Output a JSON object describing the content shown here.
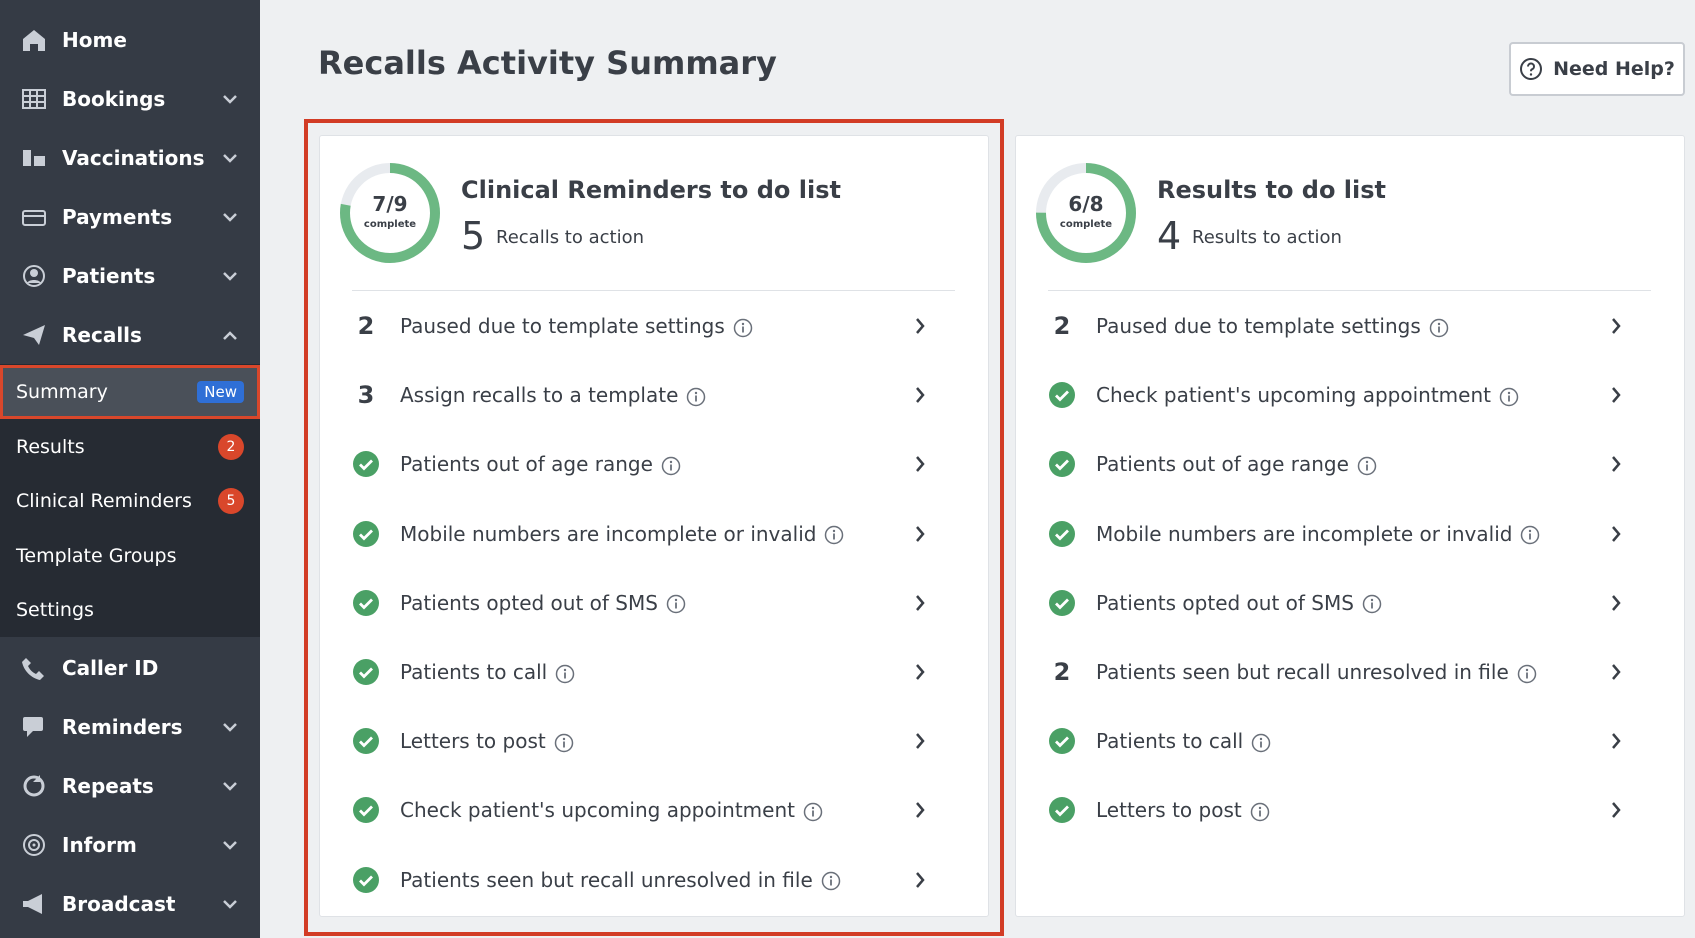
{
  "sidebar": {
    "items": [
      {
        "label": "Home",
        "icon": "home"
      },
      {
        "label": "Bookings",
        "icon": "grid",
        "expandable": true
      },
      {
        "label": "Vaccinations",
        "icon": "vial",
        "expandable": true
      },
      {
        "label": "Payments",
        "icon": "card",
        "expandable": true
      },
      {
        "label": "Patients",
        "icon": "user",
        "expandable": true
      },
      {
        "label": "Recalls",
        "icon": "plane",
        "expandable": true,
        "expanded": true,
        "children": [
          {
            "label": "Summary",
            "badge": "New",
            "active": true
          },
          {
            "label": "Results",
            "badge": "2"
          },
          {
            "label": "Clinical Reminders",
            "badge": "5"
          },
          {
            "label": "Template Groups"
          },
          {
            "label": "Settings"
          }
        ]
      },
      {
        "label": "Caller ID",
        "icon": "phone"
      },
      {
        "label": "Reminders",
        "icon": "chat",
        "expandable": true
      },
      {
        "label": "Repeats",
        "icon": "repeat",
        "expandable": true
      },
      {
        "label": "Inform",
        "icon": "target",
        "expandable": true
      },
      {
        "label": "Broadcast",
        "icon": "megaphone",
        "expandable": true
      }
    ]
  },
  "header": {
    "title": "Recalls Activity Summary",
    "help": "Need Help?"
  },
  "cards": [
    {
      "title": "Clinical Reminders to do list",
      "progress": "7/9",
      "progress_label": "complete",
      "count": "5",
      "subtitle": "Recalls to action",
      "highlighted": true,
      "items": [
        {
          "count": "2",
          "label": "Paused due to template settings"
        },
        {
          "count": "3",
          "label": "Assign recalls to a template"
        },
        {
          "count": null,
          "label": "Patients out of age range"
        },
        {
          "count": null,
          "label": "Mobile numbers are incomplete or invalid"
        },
        {
          "count": null,
          "label": "Patients opted out of SMS"
        },
        {
          "count": null,
          "label": "Patients to call"
        },
        {
          "count": null,
          "label": "Letters to post"
        },
        {
          "count": null,
          "label": "Check patient's upcoming appointment"
        },
        {
          "count": null,
          "label": "Patients seen but recall unresolved in file"
        }
      ]
    },
    {
      "title": "Results to do list",
      "progress": "6/8",
      "progress_label": "complete",
      "count": "4",
      "subtitle": "Results to action",
      "items": [
        {
          "count": "2",
          "label": "Paused due to template settings"
        },
        {
          "count": null,
          "label": "Check patient's upcoming appointment"
        },
        {
          "count": null,
          "label": "Patients out of age range"
        },
        {
          "count": null,
          "label": "Mobile numbers are incomplete or invalid"
        },
        {
          "count": null,
          "label": "Patients opted out of SMS"
        },
        {
          "count": "2",
          "label": "Patients seen but recall unresolved in file"
        },
        {
          "count": null,
          "label": "Patients to call"
        },
        {
          "count": null,
          "label": "Letters to post"
        }
      ]
    }
  ]
}
